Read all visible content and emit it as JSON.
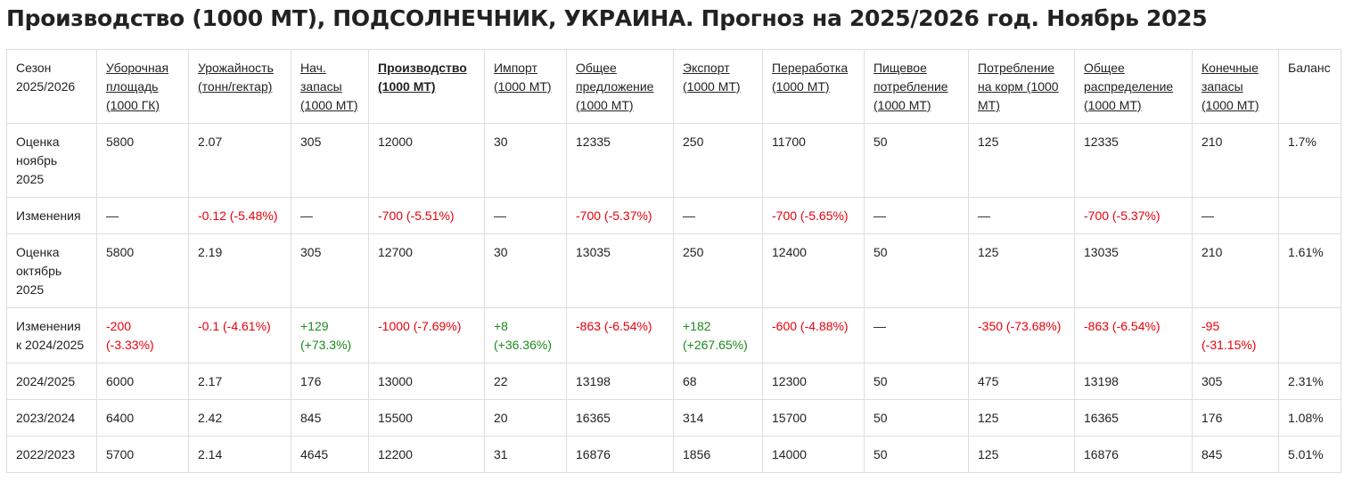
{
  "title": "Производство (1000 МТ), ПОДСОЛНЕЧНИК, УКРАИНА. Прогноз на 2025/2026 год. Ноябрь 2025",
  "colors": {
    "negative": "#e8000b",
    "positive": "#1a8a1a",
    "border": "#dddddd"
  },
  "table": {
    "headers": [
      {
        "label": "Сезон 2025/2026",
        "link": false
      },
      {
        "label": "Уборочная площадь (1000 ГК)",
        "link": true
      },
      {
        "label": "Урожайность (тонн/гектар)",
        "link": true
      },
      {
        "label": "Нач. запасы (1000 МТ)",
        "link": true
      },
      {
        "label": "Производство (1000 МТ)",
        "link": true,
        "bold": true
      },
      {
        "label": "Импорт (1000 МТ)",
        "link": true
      },
      {
        "label": "Общее предложение (1000 МТ)",
        "link": true
      },
      {
        "label": "Экспорт (1000 МТ)",
        "link": true
      },
      {
        "label": "Переработка (1000 МТ)",
        "link": true
      },
      {
        "label": "Пищевое потребление (1000 МТ)",
        "link": true
      },
      {
        "label": "Потребление на корм (1000 МТ)",
        "link": true
      },
      {
        "label": "Общее распределение (1000 МТ)",
        "link": true
      },
      {
        "label": "Конечные запасы (1000 МТ)",
        "link": true
      },
      {
        "label": "Баланс",
        "link": false
      }
    ],
    "rows": [
      {
        "cells": [
          {
            "t": "Оценка ноябрь 2025"
          },
          {
            "t": "5800"
          },
          {
            "t": "2.07"
          },
          {
            "t": "305"
          },
          {
            "t": "12000"
          },
          {
            "t": "30"
          },
          {
            "t": "12335"
          },
          {
            "t": "250"
          },
          {
            "t": "11700"
          },
          {
            "t": "50"
          },
          {
            "t": "125"
          },
          {
            "t": "12335"
          },
          {
            "t": "210"
          },
          {
            "t": "1.7%"
          }
        ]
      },
      {
        "cells": [
          {
            "t": "Изменения"
          },
          {
            "t": "—"
          },
          {
            "t": "-0.12 (-5.48%)",
            "c": "red"
          },
          {
            "t": "—"
          },
          {
            "t": "-700 (-5.51%)",
            "c": "red"
          },
          {
            "t": "—"
          },
          {
            "t": "-700 (-5.37%)",
            "c": "red"
          },
          {
            "t": "—"
          },
          {
            "t": "-700 (-5.65%)",
            "c": "red"
          },
          {
            "t": "—"
          },
          {
            "t": "—"
          },
          {
            "t": "-700 (-5.37%)",
            "c": "red"
          },
          {
            "t": "—"
          },
          {
            "t": ""
          }
        ]
      },
      {
        "cells": [
          {
            "t": "Оценка октябрь 2025"
          },
          {
            "t": "5800"
          },
          {
            "t": "2.19"
          },
          {
            "t": "305"
          },
          {
            "t": "12700"
          },
          {
            "t": "30"
          },
          {
            "t": "13035"
          },
          {
            "t": "250"
          },
          {
            "t": "12400"
          },
          {
            "t": "50"
          },
          {
            "t": "125"
          },
          {
            "t": "13035"
          },
          {
            "t": "210"
          },
          {
            "t": "1.61%"
          }
        ]
      },
      {
        "cells": [
          {
            "t": "Изменения к 2024/2025"
          },
          {
            "t": "-200 (-3.33%)",
            "c": "red"
          },
          {
            "t": "-0.1 (-4.61%)",
            "c": "red"
          },
          {
            "t": "+129 (+73.3%)",
            "c": "green"
          },
          {
            "t": "-1000 (-7.69%)",
            "c": "red"
          },
          {
            "t": "+8 (+36.36%)",
            "c": "green"
          },
          {
            "t": "-863 (-6.54%)",
            "c": "red"
          },
          {
            "t": "+182 (+267.65%)",
            "c": "green"
          },
          {
            "t": "-600 (-4.88%)",
            "c": "red"
          },
          {
            "t": "—"
          },
          {
            "t": "-350 (-73.68%)",
            "c": "red"
          },
          {
            "t": "-863 (-6.54%)",
            "c": "red"
          },
          {
            "t": "-95 (-31.15%)",
            "c": "red"
          },
          {
            "t": ""
          }
        ]
      },
      {
        "cells": [
          {
            "t": "2024/2025"
          },
          {
            "t": "6000"
          },
          {
            "t": "2.17"
          },
          {
            "t": "176"
          },
          {
            "t": "13000"
          },
          {
            "t": "22"
          },
          {
            "t": "13198"
          },
          {
            "t": "68"
          },
          {
            "t": "12300"
          },
          {
            "t": "50"
          },
          {
            "t": "475"
          },
          {
            "t": "13198"
          },
          {
            "t": "305"
          },
          {
            "t": "2.31%"
          }
        ]
      },
      {
        "cells": [
          {
            "t": "2023/2024"
          },
          {
            "t": "6400"
          },
          {
            "t": "2.42"
          },
          {
            "t": "845"
          },
          {
            "t": "15500"
          },
          {
            "t": "20"
          },
          {
            "t": "16365"
          },
          {
            "t": "314"
          },
          {
            "t": "15700"
          },
          {
            "t": "50"
          },
          {
            "t": "125"
          },
          {
            "t": "16365"
          },
          {
            "t": "176"
          },
          {
            "t": "1.08%"
          }
        ]
      },
      {
        "cells": [
          {
            "t": "2022/2023"
          },
          {
            "t": "5700"
          },
          {
            "t": "2.14"
          },
          {
            "t": "4645"
          },
          {
            "t": "12200"
          },
          {
            "t": "31"
          },
          {
            "t": "16876"
          },
          {
            "t": "1856"
          },
          {
            "t": "14000"
          },
          {
            "t": "50"
          },
          {
            "t": "125"
          },
          {
            "t": "16876"
          },
          {
            "t": "845"
          },
          {
            "t": "5.01%"
          }
        ]
      }
    ]
  }
}
